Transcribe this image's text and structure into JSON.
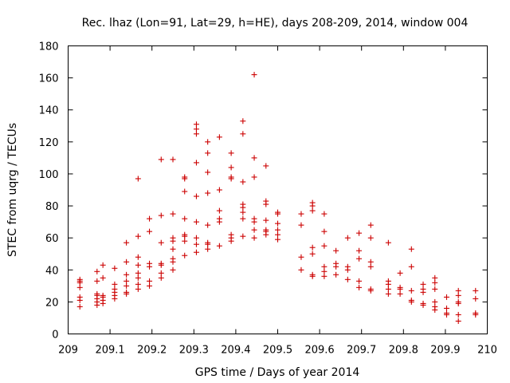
{
  "chart_data": {
    "type": "scatter",
    "title": "Rec. lhaz (Lon=91, Lat=29, h=HE), days 208-209, 2014, window 004",
    "xlabel": "GPS time / Days of year 2014",
    "ylabel": "STEC from uqrg / TECUs",
    "xlim": [
      209,
      210
    ],
    "ylim": [
      0,
      180
    ],
    "xticks": [
      209,
      209.1,
      209.2,
      209.3,
      209.4,
      209.5,
      209.6,
      209.7,
      209.8,
      209.9,
      210
    ],
    "xtick_labels": [
      "209",
      "209.1",
      "209.2",
      "209.3",
      "209.4",
      "209.5",
      "209.6",
      "209.7",
      "209.8",
      "209.9",
      "210"
    ],
    "yticks": [
      0,
      20,
      40,
      60,
      80,
      100,
      120,
      140,
      160,
      180
    ],
    "ytick_labels": [
      "0",
      "20",
      "40",
      "60",
      "80",
      "100",
      "120",
      "140",
      "160",
      "180"
    ],
    "grid": false,
    "marker": "plus",
    "color": "#cc0000",
    "points": [
      [
        209.028,
        17
      ],
      [
        209.028,
        21
      ],
      [
        209.028,
        23
      ],
      [
        209.028,
        29
      ],
      [
        209.028,
        32
      ],
      [
        209.028,
        33
      ],
      [
        209.028,
        34
      ],
      [
        209.069,
        18
      ],
      [
        209.069,
        20
      ],
      [
        209.069,
        22
      ],
      [
        209.069,
        24
      ],
      [
        209.069,
        25
      ],
      [
        209.069,
        33
      ],
      [
        209.069,
        39
      ],
      [
        209.083,
        19
      ],
      [
        209.083,
        21
      ],
      [
        209.083,
        23
      ],
      [
        209.083,
        24
      ],
      [
        209.083,
        35
      ],
      [
        209.083,
        43
      ],
      [
        209.111,
        22
      ],
      [
        209.111,
        24
      ],
      [
        209.111,
        26
      ],
      [
        209.111,
        28
      ],
      [
        209.111,
        31
      ],
      [
        209.111,
        41
      ],
      [
        209.139,
        25
      ],
      [
        209.139,
        26
      ],
      [
        209.139,
        30
      ],
      [
        209.139,
        33
      ],
      [
        209.139,
        37
      ],
      [
        209.139,
        45
      ],
      [
        209.139,
        57
      ],
      [
        209.167,
        28
      ],
      [
        209.167,
        31
      ],
      [
        209.167,
        35
      ],
      [
        209.167,
        38
      ],
      [
        209.167,
        43
      ],
      [
        209.167,
        48
      ],
      [
        209.167,
        61
      ],
      [
        209.167,
        97
      ],
      [
        209.194,
        30
      ],
      [
        209.194,
        33
      ],
      [
        209.194,
        42
      ],
      [
        209.194,
        44
      ],
      [
        209.194,
        64
      ],
      [
        209.194,
        72
      ],
      [
        209.222,
        35
      ],
      [
        209.222,
        38
      ],
      [
        209.222,
        43
      ],
      [
        209.222,
        44
      ],
      [
        209.222,
        57
      ],
      [
        209.222,
        74
      ],
      [
        209.222,
        109
      ],
      [
        209.25,
        40
      ],
      [
        209.25,
        45
      ],
      [
        209.25,
        47
      ],
      [
        209.25,
        53
      ],
      [
        209.25,
        58
      ],
      [
        209.25,
        60
      ],
      [
        209.25,
        75
      ],
      [
        209.25,
        109
      ],
      [
        209.278,
        49
      ],
      [
        209.278,
        58
      ],
      [
        209.278,
        61
      ],
      [
        209.278,
        62
      ],
      [
        209.278,
        72
      ],
      [
        209.278,
        89
      ],
      [
        209.278,
        97
      ],
      [
        209.278,
        98
      ],
      [
        209.306,
        51
      ],
      [
        209.306,
        56
      ],
      [
        209.306,
        60
      ],
      [
        209.306,
        70
      ],
      [
        209.306,
        86
      ],
      [
        209.306,
        107
      ],
      [
        209.306,
        125
      ],
      [
        209.306,
        128
      ],
      [
        209.306,
        131
      ],
      [
        209.333,
        53
      ],
      [
        209.333,
        56
      ],
      [
        209.333,
        57
      ],
      [
        209.333,
        68
      ],
      [
        209.333,
        88
      ],
      [
        209.333,
        101
      ],
      [
        209.333,
        113
      ],
      [
        209.333,
        120
      ],
      [
        209.361,
        55
      ],
      [
        209.361,
        70
      ],
      [
        209.361,
        72
      ],
      [
        209.361,
        77
      ],
      [
        209.361,
        90
      ],
      [
        209.361,
        123
      ],
      [
        209.389,
        58
      ],
      [
        209.389,
        60
      ],
      [
        209.389,
        62
      ],
      [
        209.389,
        97
      ],
      [
        209.389,
        98
      ],
      [
        209.389,
        104
      ],
      [
        209.389,
        113
      ],
      [
        209.417,
        61
      ],
      [
        209.417,
        72
      ],
      [
        209.417,
        76
      ],
      [
        209.417,
        79
      ],
      [
        209.417,
        81
      ],
      [
        209.417,
        95
      ],
      [
        209.417,
        125
      ],
      [
        209.417,
        133
      ],
      [
        209.444,
        60
      ],
      [
        209.444,
        65
      ],
      [
        209.444,
        70
      ],
      [
        209.444,
        72
      ],
      [
        209.444,
        98
      ],
      [
        209.444,
        110
      ],
      [
        209.444,
        162
      ],
      [
        209.472,
        62
      ],
      [
        209.472,
        64
      ],
      [
        209.472,
        65
      ],
      [
        209.472,
        71
      ],
      [
        209.472,
        81
      ],
      [
        209.472,
        83
      ],
      [
        209.472,
        105
      ],
      [
        209.5,
        59
      ],
      [
        209.5,
        62
      ],
      [
        209.5,
        65
      ],
      [
        209.5,
        69
      ],
      [
        209.5,
        75
      ],
      [
        209.5,
        76
      ],
      [
        209.556,
        40
      ],
      [
        209.556,
        48
      ],
      [
        209.556,
        68
      ],
      [
        209.556,
        75
      ],
      [
        209.583,
        36
      ],
      [
        209.583,
        37
      ],
      [
        209.583,
        50
      ],
      [
        209.583,
        54
      ],
      [
        209.583,
        77
      ],
      [
        209.583,
        80
      ],
      [
        209.583,
        82
      ],
      [
        209.611,
        36
      ],
      [
        209.611,
        39
      ],
      [
        209.611,
        42
      ],
      [
        209.611,
        55
      ],
      [
        209.611,
        64
      ],
      [
        209.611,
        75
      ],
      [
        209.639,
        37
      ],
      [
        209.639,
        42
      ],
      [
        209.639,
        44
      ],
      [
        209.639,
        52
      ],
      [
        209.667,
        34
      ],
      [
        209.667,
        40
      ],
      [
        209.667,
        42
      ],
      [
        209.667,
        60
      ],
      [
        209.694,
        29
      ],
      [
        209.694,
        33
      ],
      [
        209.694,
        47
      ],
      [
        209.694,
        52
      ],
      [
        209.694,
        63
      ],
      [
        209.722,
        27
      ],
      [
        209.722,
        28
      ],
      [
        209.722,
        42
      ],
      [
        209.722,
        45
      ],
      [
        209.722,
        60
      ],
      [
        209.722,
        68
      ],
      [
        209.764,
        25
      ],
      [
        209.764,
        28
      ],
      [
        209.764,
        31
      ],
      [
        209.764,
        33
      ],
      [
        209.764,
        57
      ],
      [
        209.792,
        25
      ],
      [
        209.792,
        28
      ],
      [
        209.792,
        29
      ],
      [
        209.792,
        38
      ],
      [
        209.819,
        20
      ],
      [
        209.819,
        21
      ],
      [
        209.819,
        27
      ],
      [
        209.819,
        42
      ],
      [
        209.819,
        53
      ],
      [
        209.847,
        18
      ],
      [
        209.847,
        19
      ],
      [
        209.847,
        26
      ],
      [
        209.847,
        28
      ],
      [
        209.847,
        31
      ],
      [
        209.875,
        15
      ],
      [
        209.875,
        17
      ],
      [
        209.875,
        20
      ],
      [
        209.875,
        28
      ],
      [
        209.875,
        32
      ],
      [
        209.875,
        35
      ],
      [
        209.903,
        12
      ],
      [
        209.903,
        13
      ],
      [
        209.903,
        16
      ],
      [
        209.903,
        23
      ],
      [
        209.931,
        8
      ],
      [
        209.931,
        12
      ],
      [
        209.931,
        19
      ],
      [
        209.931,
        20
      ],
      [
        209.931,
        24
      ],
      [
        209.931,
        27
      ],
      [
        209.972,
        12
      ],
      [
        209.972,
        13
      ],
      [
        209.972,
        22
      ],
      [
        209.972,
        27
      ]
    ]
  }
}
